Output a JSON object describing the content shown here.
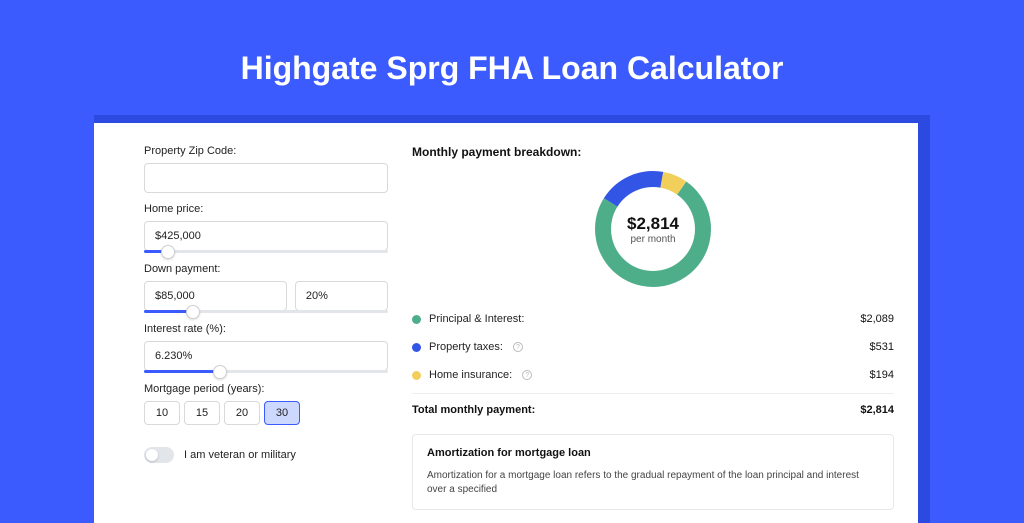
{
  "page": {
    "title": "Highgate Sprg FHA Loan Calculator",
    "background_color": "#3b5bff",
    "card_shadow_color": "#2d4ae0",
    "card_background": "#ffffff"
  },
  "form": {
    "zip_label": "Property Zip Code:",
    "zip_value": "",
    "home_price_label": "Home price:",
    "home_price_value": "$425,000",
    "home_price_slider_pct": 10,
    "down_payment_label": "Down payment:",
    "down_payment_value": "$85,000",
    "down_payment_pct_value": "20%",
    "down_payment_slider_pct": 20,
    "interest_label": "Interest rate (%):",
    "interest_value": "6.230%",
    "interest_slider_pct": 31,
    "period_label": "Mortgage period (years):",
    "period_options": [
      "10",
      "15",
      "20",
      "30"
    ],
    "period_selected_index": 3,
    "veteran_label": "I am veteran or military"
  },
  "breakdown": {
    "title": "Monthly payment breakdown:",
    "center_value": "$2,814",
    "center_sub": "per month",
    "donut": {
      "stroke_width": 16,
      "radius": 50,
      "series": [
        {
          "key": "principal_interest",
          "value": 2089,
          "pct": 0.742,
          "color": "#4fae8a"
        },
        {
          "key": "property_taxes",
          "value": 531,
          "pct": 0.189,
          "color": "#3355e6"
        },
        {
          "key": "home_insurance",
          "value": 194,
          "pct": 0.069,
          "color": "#f2cf5b"
        }
      ],
      "start_angle": -55
    },
    "legend": [
      {
        "label": "Principal & Interest:",
        "value": "$2,089",
        "color": "#4fae8a",
        "info": false
      },
      {
        "label": "Property taxes:",
        "value": "$531",
        "color": "#3355e6",
        "info": true
      },
      {
        "label": "Home insurance:",
        "value": "$194",
        "color": "#f2cf5b",
        "info": true
      }
    ],
    "total_label": "Total monthly payment:",
    "total_value": "$2,814"
  },
  "amortization": {
    "title": "Amortization for mortgage loan",
    "text": "Amortization for a mortgage loan refers to the gradual repayment of the loan principal and interest over a specified"
  }
}
